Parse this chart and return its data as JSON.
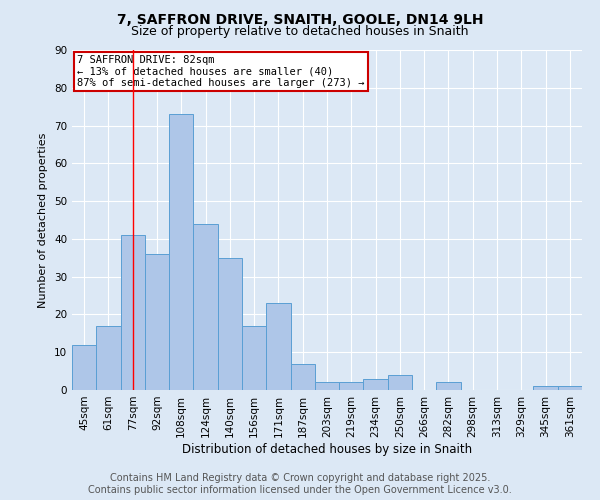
{
  "title1": "7, SAFFRON DRIVE, SNAITH, GOOLE, DN14 9LH",
  "title2": "Size of property relative to detached houses in Snaith",
  "xlabel": "Distribution of detached houses by size in Snaith",
  "ylabel": "Number of detached properties",
  "categories": [
    "45sqm",
    "61sqm",
    "77sqm",
    "92sqm",
    "108sqm",
    "124sqm",
    "140sqm",
    "156sqm",
    "171sqm",
    "187sqm",
    "203sqm",
    "219sqm",
    "234sqm",
    "250sqm",
    "266sqm",
    "282sqm",
    "298sqm",
    "313sqm",
    "329sqm",
    "345sqm",
    "361sqm"
  ],
  "values": [
    12,
    17,
    41,
    36,
    73,
    44,
    35,
    17,
    23,
    7,
    2,
    2,
    3,
    4,
    0,
    2,
    0,
    0,
    0,
    1,
    1
  ],
  "bar_color": "#aec6e8",
  "bar_edge_color": "#5a9fd4",
  "background_color": "#dce8f5",
  "grid_color": "#ffffff",
  "red_line_index": 2,
  "annotation_text": "7 SAFFRON DRIVE: 82sqm\n← 13% of detached houses are smaller (40)\n87% of semi-detached houses are larger (273) →",
  "annotation_box_color": "#ffffff",
  "annotation_box_edge": "#cc0000",
  "footer_line1": "Contains HM Land Registry data © Crown copyright and database right 2025.",
  "footer_line2": "Contains public sector information licensed under the Open Government Licence v3.0.",
  "ylim": [
    0,
    90
  ],
  "yticks": [
    0,
    10,
    20,
    30,
    40,
    50,
    60,
    70,
    80,
    90
  ],
  "title1_fontsize": 10,
  "title2_fontsize": 9,
  "xlabel_fontsize": 8.5,
  "ylabel_fontsize": 8,
  "tick_fontsize": 7.5,
  "annotation_fontsize": 7.5,
  "footer_fontsize": 7
}
